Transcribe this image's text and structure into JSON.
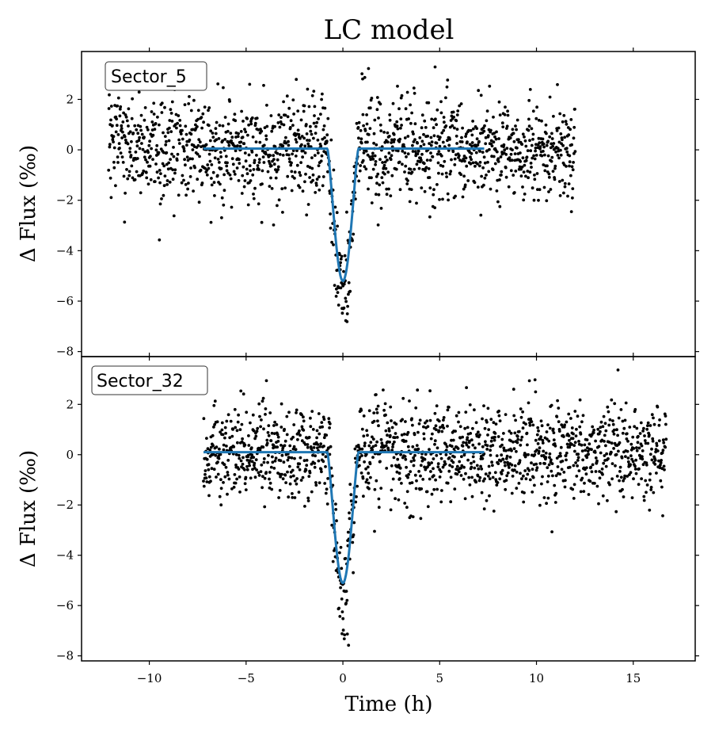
{
  "chart_data": {
    "type": "scatter",
    "title": "LC model",
    "xlabel": "Time (h)",
    "ylabel": "Δ Flux (‰)",
    "xlim": [
      -13.5,
      18.2
    ],
    "x_ticks": [
      -10,
      -5,
      0,
      5,
      10,
      15
    ],
    "x_tick_labels": [
      "−10",
      "−5",
      "0",
      "5",
      "10",
      "15"
    ],
    "y_ticks": [
      -8,
      -6,
      -4,
      -2,
      0,
      2
    ],
    "y_tick_labels": [
      "−8",
      "−6",
      "−4",
      "−2",
      "0",
      "2"
    ],
    "model_color": "#1f77b4",
    "point_color": "#000000",
    "panels": [
      {
        "label": "Sector_5",
        "ylim": [
          -8.2,
          3.9
        ],
        "data_x_range": [
          -12.1,
          12.0
        ],
        "noise_std": 1.0,
        "model": {
          "baseline": 0.05,
          "depth": -5.2,
          "t0": 0.0,
          "ingress_start": -0.8,
          "egress_end": 0.8,
          "x_range": [
            -7.2,
            7.3
          ]
        }
      },
      {
        "label": "Sector_32",
        "ylim": [
          -8.2,
          3.9
        ],
        "data_x_range": [
          -7.2,
          16.7
        ],
        "noise_std": 0.95,
        "model": {
          "baseline": 0.1,
          "depth": -5.1,
          "t0": 0.0,
          "ingress_start": -0.8,
          "egress_end": 0.8,
          "x_range": [
            -7.2,
            7.3
          ]
        }
      }
    ]
  }
}
